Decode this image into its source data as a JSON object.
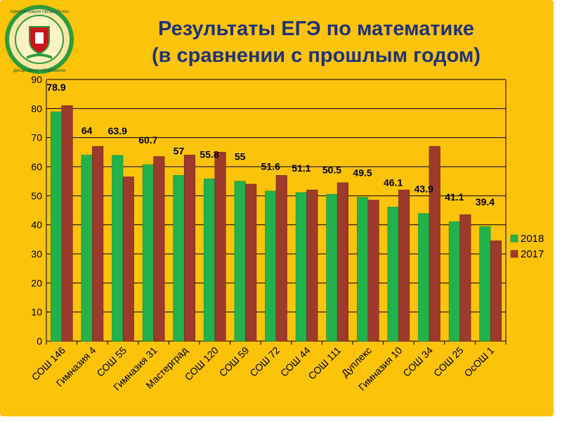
{
  "title": {
    "line1": "Результаты ЕГЭ по математике",
    "line2": "(в сравнении с прошлым годом)"
  },
  "emblem": {
    "text_top": "Администрация города Пензы",
    "text_bottom": "Департамент образования",
    "ring_color": "#2e9b3a",
    "inner_color": "#c8171b"
  },
  "colors": {
    "background": "#fcc30b",
    "series_2018": "#22b24c",
    "series_2017": "#9c3a2b",
    "title": "#1f3378"
  },
  "chart_data": {
    "type": "bar",
    "categories": [
      "СОШ 146",
      "Гимназия 4",
      "СОШ 55",
      "Гимназия 31",
      "Мастерград",
      "СОШ 120",
      "СОШ 59",
      "СОШ 72",
      "СОШ 44",
      "СОШ 111",
      "Дуплекс",
      "Гимназия 10",
      "СОШ 34",
      "СОШ 25",
      "ОсОШ 1"
    ],
    "series": [
      {
        "name": "2018",
        "values": [
          78.9,
          64,
          63.9,
          60.7,
          57,
          55.8,
          55,
          51.6,
          51.1,
          50.5,
          49.5,
          46.1,
          43.9,
          41.1,
          39.4
        ]
      },
      {
        "name": "2017",
        "values": [
          81,
          67,
          56.5,
          63.5,
          64,
          65,
          54,
          57,
          52,
          54.5,
          48.5,
          52,
          67,
          43.5,
          34.5
        ]
      }
    ],
    "data_labels": [
      "78.9",
      "64",
      "63.9",
      "60.7",
      "57",
      "55.8",
      "55",
      "51.6",
      "51.1",
      "50.5",
      "49.5",
      "46.1",
      "43.9",
      "41.1",
      "39.4"
    ],
    "yticks": [
      "0",
      "10",
      "20",
      "30",
      "40",
      "50",
      "60",
      "70",
      "80",
      "90"
    ],
    "ylim": [
      0,
      90
    ],
    "grid": true,
    "legend": "right"
  }
}
